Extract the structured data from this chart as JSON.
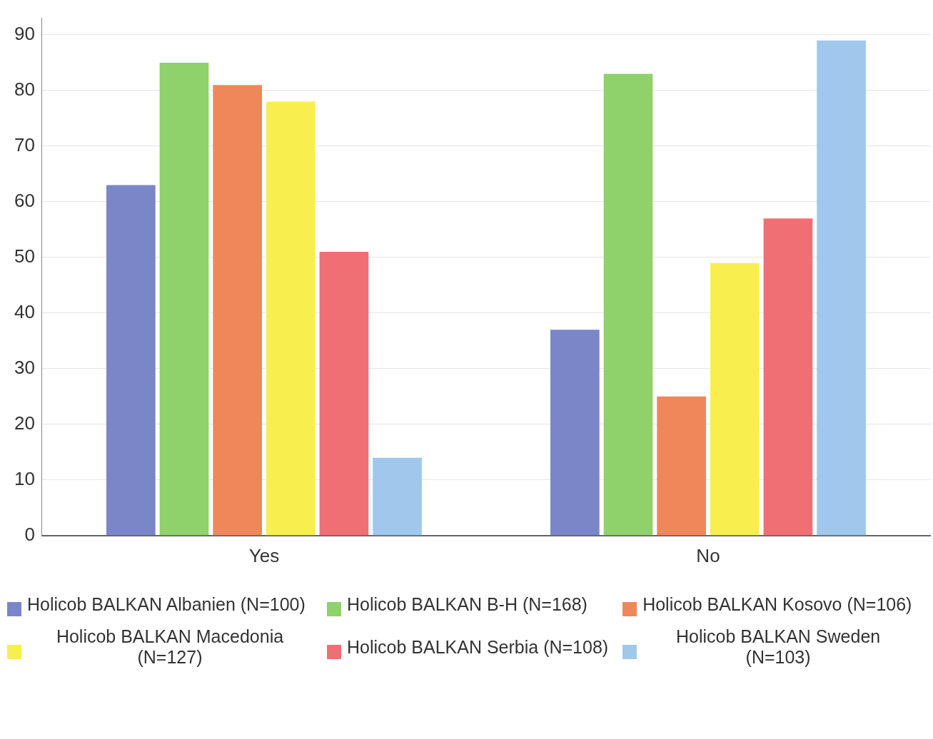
{
  "chart_data": {
    "type": "bar",
    "categories": [
      "Yes",
      "No"
    ],
    "series": [
      {
        "name": "Holicob BALKAN Albanien (N=100)",
        "color": "#7b86c9",
        "values": [
          63,
          37
        ]
      },
      {
        "name": "Holicob BALKAN B-H (N=168)",
        "color": "#8fd16b",
        "values": [
          85,
          83
        ]
      },
      {
        "name": "Holicob BALKAN Kosovo (N=106)",
        "color": "#f0875a",
        "values": [
          81,
          25
        ]
      },
      {
        "name": "Holicob BALKAN Macedonia (N=127)",
        "color": "#f8ef4e",
        "values": [
          78,
          49
        ]
      },
      {
        "name": "Holicob BALKAN Serbia (N=108)",
        "color": "#ef6f74",
        "values": [
          51,
          57
        ]
      },
      {
        "name": "Holicob BALKAN Sweden (N=103)",
        "color": "#9fc8ec",
        "values": [
          14,
          89
        ]
      }
    ],
    "ylim": [
      0,
      93
    ],
    "yticks": [
      0,
      10,
      20,
      30,
      40,
      50,
      60,
      70,
      80,
      90
    ],
    "grid": "y",
    "legend": "bottom"
  }
}
